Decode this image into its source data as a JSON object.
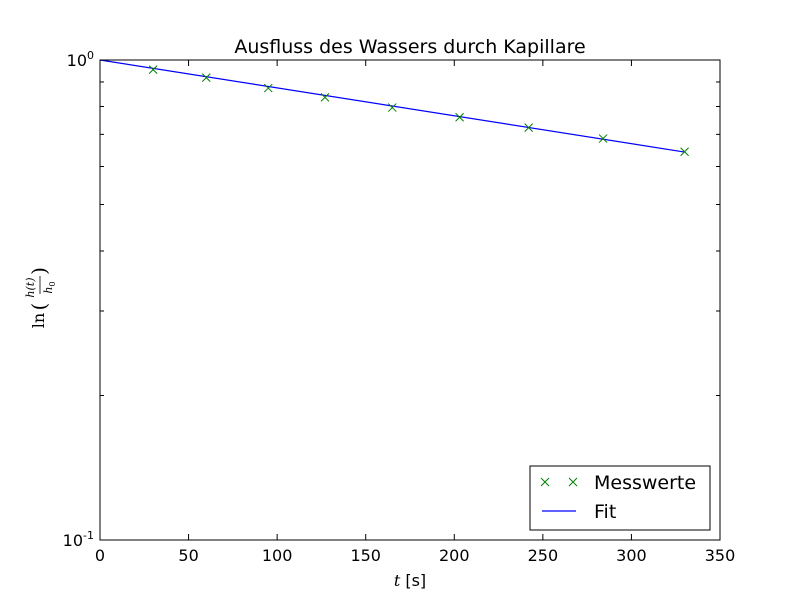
{
  "chart_data": {
    "type": "scatter",
    "title": "Ausfluss des Wassers durch Kapillare",
    "xlabel_var": "t",
    "xlabel_unit": " [s]",
    "ylabel": "ln(h(t)/h0)",
    "xlim": [
      0,
      350
    ],
    "ylim": [
      0.1,
      1.0
    ],
    "yscale": "log",
    "grid": false,
    "legend_position": "bottom-right",
    "x_ticks": [
      0,
      50,
      100,
      150,
      200,
      250,
      300,
      350
    ],
    "y_tick_labels": [
      {
        "value": 1.0,
        "base": "10",
        "exp": "0"
      },
      {
        "value": 0.1,
        "base": "10",
        "exp": "-1"
      }
    ],
    "series": [
      {
        "name": "Messwerte",
        "kind": "markers",
        "color": "#008000",
        "x": [
          30,
          60,
          95,
          127,
          165,
          203,
          242,
          284,
          330
        ],
        "y": [
          0.955,
          0.919,
          0.874,
          0.836,
          0.796,
          0.76,
          0.723,
          0.686,
          0.644
        ]
      },
      {
        "name": "Fit",
        "kind": "line",
        "color": "#0000ff",
        "x": [
          0,
          330
        ],
        "y": [
          1.0,
          0.643
        ]
      }
    ]
  }
}
